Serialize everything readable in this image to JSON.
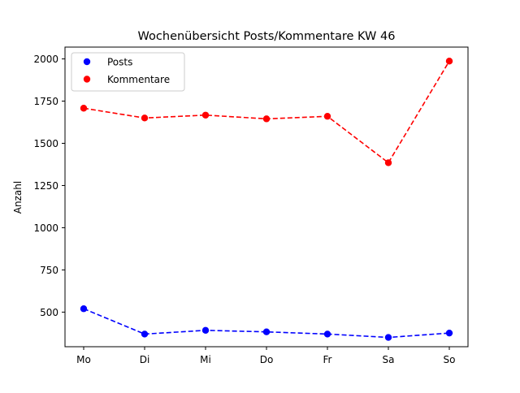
{
  "chart_data": {
    "type": "line",
    "title": "Wochenübersicht Posts/Kommentare KW 46",
    "xlabel": "",
    "ylabel": "Anzahl",
    "categories": [
      "Mo",
      "Di",
      "Mi",
      "Do",
      "Fr",
      "Sa",
      "So"
    ],
    "ylim": [
      295,
      2070
    ],
    "yticks": [
      500,
      750,
      1000,
      1250,
      1500,
      1750,
      2000
    ],
    "grid": false,
    "legend_position": "top-left",
    "series": [
      {
        "name": "Posts",
        "color": "#0000ff",
        "linestyle": "dashed",
        "marker": "circle",
        "values": [
          520,
          370,
          392,
          383,
          370,
          350,
          376
        ]
      },
      {
        "name": "Kommentare",
        "color": "#ff0000",
        "linestyle": "dashed",
        "marker": "circle",
        "values": [
          1708,
          1650,
          1667,
          1645,
          1660,
          1385,
          1987
        ]
      }
    ]
  }
}
